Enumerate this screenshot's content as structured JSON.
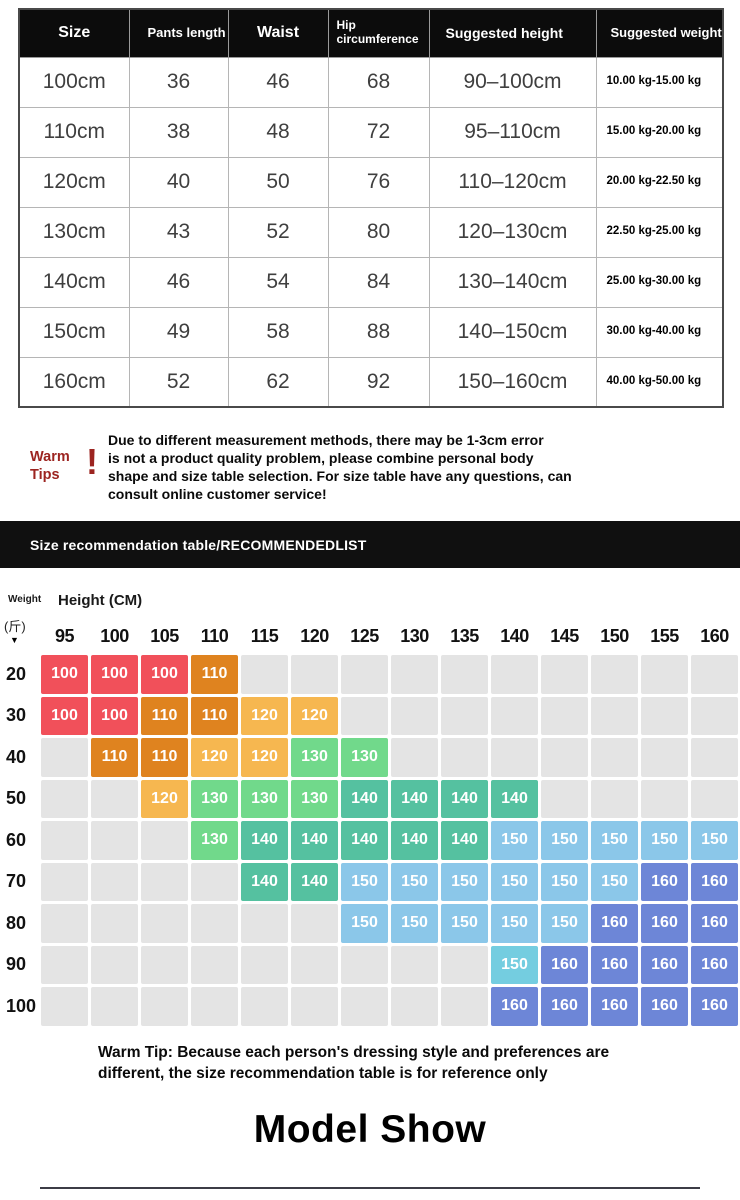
{
  "warm_tips": {
    "label": "Warm Tips",
    "mark": "!",
    "lines": [
      "Due to different measurement methods, there may be 1-3cm error",
      "is not a product quality problem, please combine personal body",
      "shape and size table selection. For size table have any questions, can",
      "consult online customer service!"
    ]
  },
  "banner": {
    "title": "Size recommendation table/RECOMMENDEDLIST"
  },
  "labels": {
    "weight": "Weight",
    "height": "Height (CM)",
    "unit": "(斤)",
    "arrow": "▼"
  },
  "bottom_tip_lines": [
    "Warm Tip: Because each person's dressing style and preferences are",
    "different, the size recommendation table is for reference only"
  ],
  "model_show": "Model Show",
  "chart_data": [
    {
      "type": "table",
      "title": "Size table",
      "columns": [
        "Size",
        "Pants length",
        "Waist",
        "Hip circumference",
        "Suggested height",
        "Suggested weight"
      ],
      "rows": [
        [
          "100cm",
          "36",
          "46",
          "68",
          "90–100cm",
          "10.00 kg-15.00 kg"
        ],
        [
          "110cm",
          "38",
          "48",
          "72",
          "95–110cm",
          "15.00 kg-20.00 kg"
        ],
        [
          "120cm",
          "40",
          "50",
          "76",
          "110–120cm",
          "20.00 kg-22.50 kg"
        ],
        [
          "130cm",
          "43",
          "52",
          "80",
          "120–130cm",
          "22.50 kg-25.00 kg"
        ],
        [
          "140cm",
          "46",
          "54",
          "84",
          "130–140cm",
          "25.00 kg-30.00 kg"
        ],
        [
          "150cm",
          "49",
          "58",
          "88",
          "140–150cm",
          "30.00 kg-40.00 kg"
        ],
        [
          "160cm",
          "52",
          "62",
          "92",
          "150–160cm",
          "40.00 kg-50.00 kg"
        ]
      ]
    },
    {
      "type": "heatmap",
      "title": "Size recommendation table/RECOMMENDEDLIST",
      "x_label": "Height (CM)",
      "y_label": "Weight (斤)",
      "columns": [
        "95",
        "100",
        "105",
        "110",
        "115",
        "120",
        "125",
        "130",
        "135",
        "140",
        "145",
        "150",
        "155",
        "160"
      ],
      "row_labels": [
        "20",
        "30",
        "40",
        "50",
        "60",
        "70",
        "80",
        "90",
        "100"
      ],
      "palette": {
        "red": "#f1505a",
        "orange": "#df831f",
        "amber": "#f6b750",
        "green": "#71d98b",
        "teal": "#55c1a0",
        "blue": "#8bc7e9",
        "cyan": "#74cde0",
        "purple": "#6d86d7",
        "empty": "#e4e4e4"
      },
      "cells": [
        [
          {
            "v": "100",
            "c": "red"
          },
          {
            "v": "100",
            "c": "red"
          },
          {
            "v": "100",
            "c": "red"
          },
          {
            "v": "110",
            "c": "orange"
          },
          null,
          null,
          null,
          null,
          null,
          null,
          null,
          null,
          null,
          null
        ],
        [
          {
            "v": "100",
            "c": "red"
          },
          {
            "v": "100",
            "c": "red"
          },
          {
            "v": "110",
            "c": "orange"
          },
          {
            "v": "110",
            "c": "orange"
          },
          {
            "v": "120",
            "c": "amber"
          },
          {
            "v": "120",
            "c": "amber"
          },
          null,
          null,
          null,
          null,
          null,
          null,
          null,
          null
        ],
        [
          null,
          {
            "v": "110",
            "c": "orange"
          },
          {
            "v": "110",
            "c": "orange"
          },
          {
            "v": "120",
            "c": "amber"
          },
          {
            "v": "120",
            "c": "amber"
          },
          {
            "v": "130",
            "c": "green"
          },
          {
            "v": "130",
            "c": "green"
          },
          null,
          null,
          null,
          null,
          null,
          null,
          null
        ],
        [
          null,
          null,
          {
            "v": "120",
            "c": "amber"
          },
          {
            "v": "130",
            "c": "green"
          },
          {
            "v": "130",
            "c": "green"
          },
          {
            "v": "130",
            "c": "green"
          },
          {
            "v": "140",
            "c": "teal"
          },
          {
            "v": "140",
            "c": "teal"
          },
          {
            "v": "140",
            "c": "teal"
          },
          {
            "v": "140",
            "c": "teal"
          },
          null,
          null,
          null,
          null
        ],
        [
          null,
          null,
          null,
          {
            "v": "130",
            "c": "green"
          },
          {
            "v": "140",
            "c": "teal"
          },
          {
            "v": "140",
            "c": "teal"
          },
          {
            "v": "140",
            "c": "teal"
          },
          {
            "v": "140",
            "c": "teal"
          },
          {
            "v": "140",
            "c": "teal"
          },
          {
            "v": "150",
            "c": "blue"
          },
          {
            "v": "150",
            "c": "blue"
          },
          {
            "v": "150",
            "c": "blue"
          },
          {
            "v": "150",
            "c": "blue"
          },
          {
            "v": "150",
            "c": "blue"
          }
        ],
        [
          null,
          null,
          null,
          null,
          {
            "v": "140",
            "c": "teal"
          },
          {
            "v": "140",
            "c": "teal"
          },
          {
            "v": "150",
            "c": "blue"
          },
          {
            "v": "150",
            "c": "blue"
          },
          {
            "v": "150",
            "c": "blue"
          },
          {
            "v": "150",
            "c": "blue"
          },
          {
            "v": "150",
            "c": "blue"
          },
          {
            "v": "150",
            "c": "blue"
          },
          {
            "v": "160",
            "c": "purple"
          },
          {
            "v": "160",
            "c": "purple"
          }
        ],
        [
          null,
          null,
          null,
          null,
          null,
          null,
          {
            "v": "150",
            "c": "blue"
          },
          {
            "v": "150",
            "c": "blue"
          },
          {
            "v": "150",
            "c": "blue"
          },
          {
            "v": "150",
            "c": "blue"
          },
          {
            "v": "150",
            "c": "blue"
          },
          {
            "v": "160",
            "c": "purple"
          },
          {
            "v": "160",
            "c": "purple"
          },
          {
            "v": "160",
            "c": "purple"
          }
        ],
        [
          null,
          null,
          null,
          null,
          null,
          null,
          null,
          null,
          null,
          {
            "v": "150",
            "c": "cyan"
          },
          {
            "v": "160",
            "c": "purple"
          },
          {
            "v": "160",
            "c": "purple"
          },
          {
            "v": "160",
            "c": "purple"
          },
          {
            "v": "160",
            "c": "purple"
          }
        ],
        [
          null,
          null,
          null,
          null,
          null,
          null,
          null,
          null,
          null,
          {
            "v": "160",
            "c": "purple"
          },
          {
            "v": "160",
            "c": "purple"
          },
          {
            "v": "160",
            "c": "purple"
          },
          {
            "v": "160",
            "c": "purple"
          },
          {
            "v": "160",
            "c": "purple"
          }
        ]
      ]
    }
  ]
}
